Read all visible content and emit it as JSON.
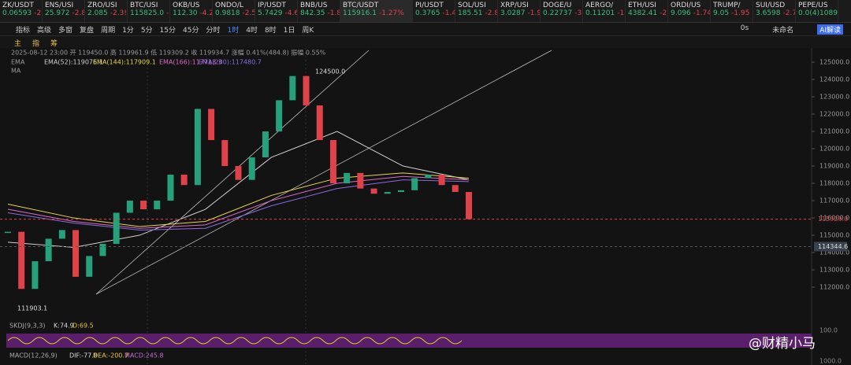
{
  "tickers": [
    {
      "name": "ZK/USDT",
      "price": "0.06593",
      "change": "-2.8"
    },
    {
      "name": "ENS/USI",
      "price": "25.972",
      "change": "-2.8"
    },
    {
      "name": "ZRO/USI",
      "price": "2.085",
      "change": "-2.3!"
    },
    {
      "name": "BTC/USI",
      "price": "115825.0",
      "change": "-2"
    },
    {
      "name": "OKB/US",
      "price": "112.30",
      "change": "-4.2"
    },
    {
      "name": "ONDO/L",
      "price": "0.9818",
      "change": "-2.5"
    },
    {
      "name": "IP/USDT",
      "price": "5.7429",
      "change": "-4.6"
    },
    {
      "name": "BNB/US",
      "price": "842.35",
      "change": "-1.8"
    },
    {
      "name": "BTC/USDT",
      "price": "115916.1",
      "change": "-1.27%"
    },
    {
      "name": "PI/USDT",
      "price": "0.3765",
      "change": "-1.4"
    },
    {
      "name": "SOL/USI",
      "price": "185.51",
      "change": "-2.8"
    },
    {
      "name": "XRP/USI",
      "price": "3.0287",
      "change": "-1.9"
    },
    {
      "name": "DOGE/U",
      "price": "0.22737",
      "change": "-3"
    },
    {
      "name": "AERGO/",
      "price": "0.11201",
      "change": "-1"
    },
    {
      "name": "ETH/USI",
      "price": "4382.41",
      "change": "-2"
    },
    {
      "name": "ORDI/US",
      "price": "9.096",
      "change": "-1.74"
    },
    {
      "name": "TRUMP/",
      "price": "9.05",
      "change": "-1.95"
    },
    {
      "name": "SUI/USD",
      "price": "3.6598",
      "change": "-2.7"
    },
    {
      "name": "PEPE/US",
      "price": "0.0(4)1089",
      "change": ""
    }
  ],
  "toolbar": [
    "指标",
    "高级",
    "多窗",
    "复盘",
    "周期",
    "1分",
    "5分",
    "15分",
    "45分",
    "分时",
    "1时",
    "4时",
    "8时",
    "1日",
    "周K"
  ],
  "toolbar_right": [
    "0s",
    "未命名",
    "AI解读"
  ],
  "drawing_tools": [
    "主",
    "指",
    "筹"
  ],
  "info": "2025-08-12 23:00 开 119450.0 高 119961.9 低 119309.2 收 119934.7 涨幅 0.41%(484.8) 振幅 0.55%",
  "ema_legend": [
    "EMA",
    "EMA(52):119076.1",
    "EMA(144):117909.1",
    "EMA(166):117713.3",
    "EMA(200):117480.7"
  ],
  "ma_legend": "MA",
  "high_label": "124500.0",
  "low_label": "111903.1",
  "skdj": {
    "name": "SKDJ(9,3,3)",
    "k": "K:74.9",
    "d": "D:69.5",
    "axis": "100.0"
  },
  "macd": {
    "name": "MACD(12,26,9)",
    "dif": "DIF:-77.8",
    "dea": "DEA:-200.7",
    "macd": "MACD:245.8",
    "axis": "1000.0"
  },
  "watermark": "@财精小马",
  "chart_data": {
    "type": "candlestick",
    "ylim": [
      110230,
      125820
    ],
    "yticks": [
      {
        "value": 112000,
        "label": "112000.0"
      },
      {
        "value": 113000,
        "label": "113000.0"
      },
      {
        "value": 114000,
        "label": "114000.0"
      },
      {
        "value": 115000,
        "label": "115000.0"
      },
      {
        "value": 116000,
        "label": "116000.0"
      },
      {
        "value": 117000,
        "label": "117000.0"
      },
      {
        "value": 118000,
        "label": "118000.0"
      },
      {
        "value": 119000,
        "label": "119000.0"
      },
      {
        "value": 120000,
        "label": "120000.0"
      },
      {
        "value": 121000,
        "label": "121000.0"
      },
      {
        "value": 122000,
        "label": "122000.0"
      },
      {
        "value": 123000,
        "label": "123000.0"
      },
      {
        "value": 124000,
        "label": "124000.0"
      },
      {
        "value": 125000,
        "label": "125000.0"
      }
    ],
    "values": [
      115200,
      111900,
      113500,
      114800,
      115300,
      112600,
      113800,
      114500,
      116300,
      117000,
      116500,
      117000,
      118500,
      117900,
      122300,
      120500,
      119000,
      118200,
      119500,
      121000,
      122800,
      124200,
      122500,
      120500,
      118000,
      118600,
      117700,
      117400,
      117500,
      117600,
      118300,
      118500,
      117900,
      117500,
      115930
    ],
    "last_price": {
      "value": 115929.9,
      "label": "115929.9"
    },
    "marker_price": {
      "value": 114344.6,
      "label": "114344.6"
    },
    "series": [
      {
        "name": "EMA(52)",
        "color": "#cfcfcf",
        "values": [
          114600,
          114300,
          115000,
          116500,
          119500,
          121000,
          119000,
          118200
        ]
      },
      {
        "name": "EMA(144)",
        "color": "#e8d44d",
        "values": [
          116800,
          116000,
          115500,
          115800,
          117300,
          118300,
          118600,
          118300
        ]
      },
      {
        "name": "EMA(166)",
        "color": "#d86bc9",
        "values": [
          116500,
          115800,
          115400,
          115600,
          117000,
          118000,
          118400,
          118200
        ]
      },
      {
        "name": "EMA(200)",
        "color": "#8a6be0",
        "values": [
          116300,
          115700,
          115300,
          115400,
          116700,
          117700,
          118200,
          118100
        ]
      }
    ],
    "up_color": "#26a17b",
    "down_color": "#e0424a"
  }
}
